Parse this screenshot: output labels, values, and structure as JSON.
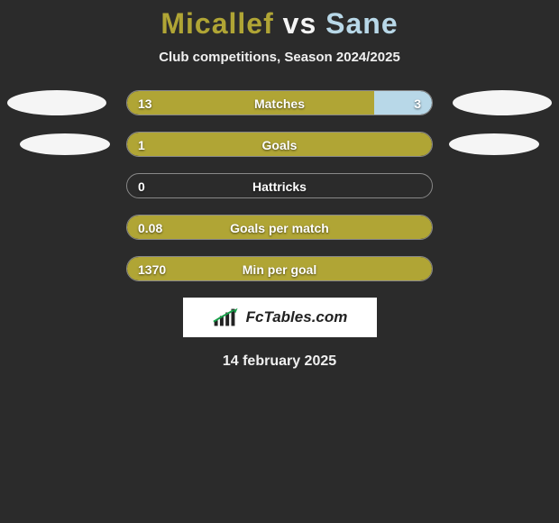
{
  "header": {
    "player1": "Micallef",
    "vs": "vs",
    "player2": "Sane",
    "subtitle": "Club competitions, Season 2024/2025"
  },
  "colors": {
    "p1_text": "#b0a535",
    "p2_text": "#b8d8e8",
    "p1_bar": "#b0a535",
    "p2_bar": "#b8d8e8",
    "background": "#2b2b2b",
    "ellipse": "#f5f5f5"
  },
  "stats": [
    {
      "label": "Matches",
      "left_val": "13",
      "right_val": "3",
      "left_pct": 81,
      "right_pct": 19,
      "show_right": true,
      "ellipse_big": true
    },
    {
      "label": "Goals",
      "left_val": "1",
      "right_val": "",
      "left_pct": 100,
      "right_pct": 0,
      "show_right": false,
      "ellipse_big": false
    },
    {
      "label": "Hattricks",
      "left_val": "0",
      "right_val": "",
      "left_pct": 0,
      "right_pct": 0,
      "show_right": false,
      "ellipse_big": false
    },
    {
      "label": "Goals per match",
      "left_val": "0.08",
      "right_val": "",
      "left_pct": 100,
      "right_pct": 0,
      "show_right": false,
      "ellipse_big": false
    },
    {
      "label": "Min per goal",
      "left_val": "1370",
      "right_val": "",
      "left_pct": 100,
      "right_pct": 0,
      "show_right": false,
      "ellipse_big": false
    }
  ],
  "footer": {
    "logo_text": "FcTables.com",
    "date": "14 february 2025"
  }
}
